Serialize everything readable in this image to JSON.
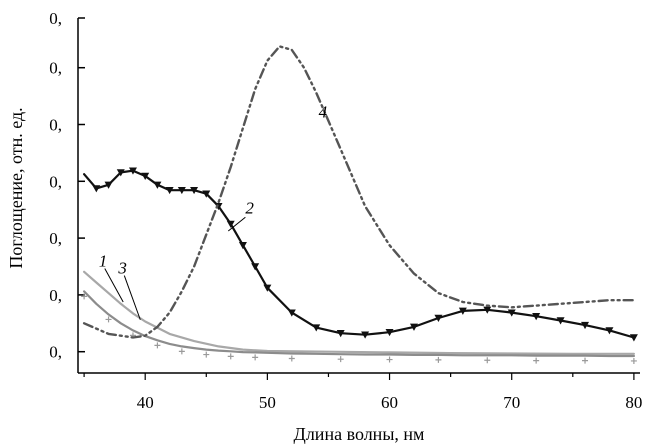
{
  "chart_data": {
    "type": "line",
    "xlabel": "Длина волны, нм",
    "ylabel": "Поглощение, отн. ед.",
    "xlim": [
      34.5,
      80.5
    ],
    "ylim": [
      0,
      1
    ],
    "x_ticks": [
      40,
      50,
      60,
      70,
      80
    ],
    "x_tick_labels": [
      "40",
      "50",
      "60",
      "70",
      "80"
    ],
    "y_ticks": [
      0.06,
      0.22,
      0.38,
      0.54,
      0.7,
      0.86,
      1.0
    ],
    "y_tick_labels": [
      "0,",
      "0,",
      "0,",
      "0,",
      "0,",
      "0,",
      "0,"
    ],
    "grid": false,
    "series": [
      {
        "name": "1",
        "color": "#a8a8a8",
        "style": "solid",
        "marker": "none",
        "x": [
          35,
          36,
          37,
          38,
          39,
          40,
          42,
          44,
          46,
          48,
          50,
          55,
          60,
          65,
          70,
          75,
          80
        ],
        "y": [
          0.285,
          0.255,
          0.225,
          0.195,
          0.168,
          0.145,
          0.11,
          0.09,
          0.075,
          0.066,
          0.062,
          0.06,
          0.058,
          0.056,
          0.055,
          0.054,
          0.054
        ]
      },
      {
        "name": "2",
        "color": "#111111",
        "style": "solid",
        "marker": "triangle-down",
        "x": [
          35,
          36,
          37,
          38,
          39,
          40,
          41,
          42,
          43,
          44,
          45,
          46,
          47,
          48,
          49,
          50,
          52,
          54,
          56,
          58,
          60,
          62,
          64,
          66,
          68,
          70,
          72,
          74,
          76,
          78,
          80
        ],
        "y": [
          0.56,
          0.52,
          0.53,
          0.565,
          0.57,
          0.555,
          0.53,
          0.515,
          0.515,
          0.515,
          0.505,
          0.47,
          0.42,
          0.36,
          0.3,
          0.24,
          0.17,
          0.128,
          0.112,
          0.108,
          0.115,
          0.13,
          0.155,
          0.175,
          0.178,
          0.17,
          0.16,
          0.148,
          0.135,
          0.12,
          0.1
        ]
      },
      {
        "name": "3",
        "color": "#8c8c8c",
        "style": "solid",
        "marker": "plus",
        "x": [
          35,
          36,
          37,
          38,
          39,
          40,
          41,
          42,
          43,
          44,
          45,
          46,
          47,
          48,
          49,
          50,
          52,
          54,
          56,
          58,
          60,
          62,
          64,
          66,
          68,
          70,
          72,
          74,
          76,
          78,
          80
        ],
        "y": [
          0.23,
          0.195,
          0.165,
          0.14,
          0.12,
          0.104,
          0.092,
          0.082,
          0.075,
          0.07,
          0.066,
          0.063,
          0.061,
          0.059,
          0.058,
          0.057,
          0.055,
          0.054,
          0.053,
          0.052,
          0.052,
          0.051,
          0.051,
          0.05,
          0.05,
          0.05,
          0.049,
          0.049,
          0.049,
          0.048,
          0.048
        ]
      },
      {
        "name": "4",
        "color": "#555555",
        "style": "dash-dot-dot",
        "marker": "none",
        "x": [
          35,
          37,
          39,
          40,
          41,
          42,
          43,
          44,
          45,
          46,
          47,
          48,
          49,
          50,
          51,
          52,
          53,
          54,
          55,
          56,
          57,
          58,
          60,
          62,
          64,
          66,
          68,
          70,
          72,
          74,
          76,
          78,
          80
        ],
        "y": [
          0.14,
          0.11,
          0.1,
          0.105,
          0.13,
          0.17,
          0.23,
          0.3,
          0.39,
          0.48,
          0.58,
          0.69,
          0.8,
          0.88,
          0.92,
          0.91,
          0.86,
          0.79,
          0.71,
          0.63,
          0.55,
          0.47,
          0.36,
          0.28,
          0.225,
          0.2,
          0.19,
          0.185,
          0.19,
          0.195,
          0.2,
          0.205,
          0.205
        ]
      }
    ],
    "annotations": [
      {
        "text": "1",
        "x": 36.2,
        "y": 0.3
      },
      {
        "text": "2",
        "x": 48.2,
        "y": 0.45
      },
      {
        "text": "3",
        "x": 37.8,
        "y": 0.28
      },
      {
        "text": "4",
        "x": 54.2,
        "y": 0.72
      }
    ]
  }
}
